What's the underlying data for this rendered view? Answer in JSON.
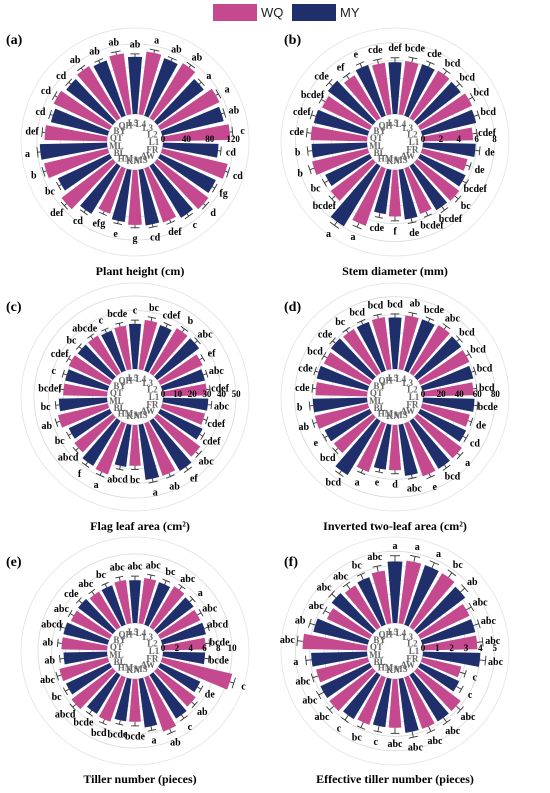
{
  "legend": [
    {
      "name": "WQ",
      "color": "#c5498f"
    },
    {
      "name": "MY",
      "color": "#1f2f6b"
    }
  ],
  "chart_data": [
    {
      "type": "bar",
      "polar": true,
      "panel": "(a)",
      "title": "Plant height (cm)",
      "ticks": [
        "0",
        "40",
        "80",
        "120"
      ],
      "rmax": 130,
      "categories": [
        "L1",
        "L2",
        "L3",
        "L4",
        "L5",
        "QH",
        "BY",
        "QT",
        "ML",
        "BL",
        "HM",
        "KN",
        "MS",
        "AW",
        "FR"
      ],
      "series": [
        {
          "name": "WQ",
          "values": [
            115,
            112,
            110,
            108,
            105,
            104,
            106,
            107,
            112,
            110,
            82,
            94,
            98,
            110,
            115
          ],
          "err": [
            5,
            5,
            5,
            5,
            5,
            5,
            5,
            5,
            5,
            5,
            5,
            5,
            5,
            5,
            5
          ]
        },
        {
          "name": "MY",
          "values": [
            95,
            108,
            100,
            104,
            98,
            100,
            100,
            100,
            115,
            98,
            96,
            90,
            96,
            104,
            105
          ],
          "err": [
            5,
            5,
            5,
            5,
            5,
            5,
            5,
            5,
            5,
            5,
            5,
            5,
            5,
            5,
            5
          ]
        }
      ],
      "letters": [
        [
          "c",
          "cd"
        ],
        [
          "a",
          "ab"
        ],
        [
          "ab",
          "a"
        ],
        [
          "a",
          "ab"
        ],
        [
          "ab",
          "ab"
        ],
        [
          "ab",
          "ab"
        ],
        [
          "cd",
          "cd"
        ],
        [
          "def",
          "cd"
        ],
        [
          "b",
          "a"
        ],
        [
          "def",
          "bc"
        ],
        [
          "efg",
          "cd"
        ],
        [
          "g",
          "e"
        ],
        [
          "def",
          "cd"
        ],
        [
          "d",
          "c"
        ],
        [
          "cd",
          "fg"
        ]
      ]
    },
    {
      "type": "bar",
      "polar": true,
      "panel": "(b)",
      "title": "Stem diameter (mm)",
      "ticks": [
        "0",
        "2",
        "4",
        "6",
        "8"
      ],
      "rmax": 8.5,
      "categories": [
        "L1",
        "L2",
        "L3",
        "L4",
        "L5",
        "QH",
        "BY",
        "QT",
        "ML",
        "BL",
        "HM",
        "KN",
        "MS",
        "AW",
        "FR"
      ],
      "series": [
        {
          "name": "WQ",
          "values": [
            5.6,
            6.4,
            6.2,
            6.0,
            5.8,
            5.6,
            5.9,
            6.3,
            6.4,
            5.9,
            6.8,
            5.2,
            5.4,
            5.9,
            5.2
          ],
          "err": [
            0.5,
            0.5,
            0.5,
            0.5,
            0.5,
            0.5,
            0.5,
            0.5,
            0.5,
            0.5,
            0.5,
            0.5,
            0.5,
            0.5,
            0.5
          ]
        },
        {
          "name": "MY",
          "values": [
            5.9,
            6.2,
            6.1,
            6.1,
            5.8,
            6.0,
            6.3,
            6.2,
            6.2,
            5.5,
            7.9,
            5.0,
            5.6,
            5.8,
            5.6
          ],
          "err": [
            0.5,
            0.5,
            0.5,
            0.5,
            0.5,
            0.5,
            0.5,
            0.5,
            0.5,
            0.5,
            0.5,
            0.5,
            0.5,
            0.5,
            0.5
          ]
        }
      ],
      "letters": [
        [
          "cdef",
          "de"
        ],
        [
          "bcd",
          "bcd"
        ],
        [
          "bcd",
          "bcd"
        ],
        [
          "bcde",
          "cde"
        ],
        [
          "cde",
          "def"
        ],
        [
          "ef",
          "e"
        ],
        [
          "bcdef",
          "cde"
        ],
        [
          "cde",
          "cdef"
        ],
        [
          "b",
          "b"
        ],
        [
          "bcdef",
          "bc"
        ],
        [
          "a",
          "a"
        ],
        [
          "f",
          "cde"
        ],
        [
          "bcdef",
          "de"
        ],
        [
          "bc",
          "bcdef"
        ],
        [
          "de",
          "bcdef"
        ]
      ]
    },
    {
      "type": "bar",
      "polar": true,
      "panel": "(c)",
      "title": "Flag leaf area (cm²)",
      "ticks": [
        "0",
        "10",
        "20",
        "30",
        "40",
        "50"
      ],
      "rmax": 52,
      "categories": [
        "L1",
        "L2",
        "L3",
        "L4",
        "L5",
        "QH",
        "BY",
        "QT",
        "ML",
        "BL",
        "HM",
        "KN",
        "MS",
        "AW",
        "FR"
      ],
      "series": [
        {
          "name": "WQ",
          "values": [
            30,
            32,
            36,
            34,
            30,
            30,
            31,
            30,
            35,
            33,
            37,
            28,
            38,
            37,
            30
          ],
          "err": [
            2.5,
            2.5,
            2.5,
            2.5,
            2.5,
            2.5,
            2.5,
            2.5,
            2.5,
            2.5,
            2.5,
            2.5,
            2.5,
            2.5,
            2.5
          ]
        },
        {
          "name": "MY",
          "values": [
            31,
            30,
            36,
            33,
            31,
            29,
            30,
            30,
            33,
            31,
            36,
            29,
            38,
            40,
            32
          ],
          "err": [
            2.5,
            2.5,
            2.5,
            2.5,
            2.5,
            2.5,
            2.5,
            2.5,
            2.5,
            2.5,
            2.5,
            2.5,
            2.5,
            2.5,
            2.5
          ]
        }
      ],
      "letters": [
        [
          "cdef",
          "abc"
        ],
        [
          "ef",
          "abc"
        ],
        [
          "b",
          "abc"
        ],
        [
          "bc",
          "cdef"
        ],
        [
          "bcde",
          "c"
        ],
        [
          "abcde",
          "c"
        ],
        [
          "cdef",
          "bc"
        ],
        [
          "bcdef",
          "c"
        ],
        [
          "ab",
          "bc"
        ],
        [
          "abcd",
          "bc"
        ],
        [
          "a",
          "f"
        ],
        [
          "bc",
          "abcd"
        ],
        [
          "ab",
          "a"
        ],
        [
          "abc",
          "ef"
        ],
        [
          "cdef",
          "cdef"
        ]
      ]
    },
    {
      "type": "bar",
      "polar": true,
      "panel": "(d)",
      "title": "Inverted two-leaf area (cm²)",
      "ticks": [
        "0",
        "20",
        "40",
        "60",
        "80"
      ],
      "rmax": 84,
      "categories": [
        "L1",
        "L2",
        "L3",
        "L4",
        "L5",
        "QH",
        "BY",
        "QT",
        "ML",
        "BL",
        "HM",
        "KN",
        "MS",
        "AW",
        "FR"
      ],
      "series": [
        {
          "name": "WQ",
          "values": [
            56,
            60,
            62,
            60,
            58,
            57,
            56,
            57,
            60,
            54,
            57,
            50,
            62,
            62,
            54
          ],
          "err": [
            4,
            4,
            4,
            4,
            4,
            4,
            4,
            4,
            4,
            4,
            4,
            4,
            4,
            4,
            4
          ]
        },
        {
          "name": "MY",
          "values": [
            57,
            58,
            61,
            60,
            57,
            57,
            58,
            58,
            60,
            55,
            70,
            50,
            57,
            62,
            56
          ],
          "err": [
            4,
            4,
            4,
            4,
            4,
            4,
            4,
            4,
            4,
            4,
            4,
            4,
            4,
            4,
            4
          ]
        }
      ],
      "letters": [
        [
          "bcd",
          "bcde"
        ],
        [
          "bcd",
          "bcd"
        ],
        [
          "abc",
          "bcd"
        ],
        [
          "ab",
          "bcde"
        ],
        [
          "bcd",
          "bcd"
        ],
        [
          "bc",
          "bcd"
        ],
        [
          "bcd",
          "cde"
        ],
        [
          "cde",
          "cde"
        ],
        [
          "ab",
          "b"
        ],
        [
          "bcd",
          "e"
        ],
        [
          "a",
          "bcd"
        ],
        [
          "d",
          "e"
        ],
        [
          "e",
          "abc"
        ],
        [
          "a",
          "bcd"
        ],
        [
          "de",
          "cd"
        ]
      ]
    },
    {
      "type": "bar",
      "polar": true,
      "panel": "(e)",
      "title": "Tiller number (pieces)",
      "ticks": [
        "0",
        "2",
        "4",
        "6",
        "8",
        "10"
      ],
      "rmax": 11,
      "categories": [
        "L1",
        "L2",
        "L3",
        "L4",
        "L5",
        "QH",
        "BY",
        "QT",
        "ML",
        "BL",
        "HM",
        "KN",
        "MS",
        "AW",
        "FR"
      ],
      "series": [
        {
          "name": "WQ",
          "values": [
            6.2,
            6.4,
            6.9,
            6.6,
            6.3,
            6.0,
            6.2,
            6.6,
            7.2,
            7.5,
            6.8,
            6.2,
            8.3,
            7.0,
            10.4
          ],
          "err": [
            0.6,
            0.6,
            0.6,
            0.6,
            0.6,
            0.6,
            0.6,
            0.6,
            0.6,
            0.6,
            0.6,
            0.6,
            0.6,
            0.6,
            0.6
          ]
        },
        {
          "name": "MY",
          "values": [
            6.1,
            6.5,
            6.6,
            6.5,
            6.2,
            6.0,
            6.3,
            6.6,
            6.3,
            7.0,
            6.6,
            6.2,
            7.1,
            7.4,
            6.4
          ],
          "err": [
            0.6,
            0.6,
            0.6,
            0.6,
            0.6,
            0.6,
            0.6,
            0.6,
            0.6,
            0.6,
            0.6,
            0.6,
            0.6,
            0.6,
            0.6
          ]
        }
      ],
      "letters": [
        [
          "bcde",
          "bcde"
        ],
        [
          "abc",
          "abcd"
        ],
        [
          "abc",
          "a"
        ],
        [
          "abc",
          "bc"
        ],
        [
          "abc",
          "abc"
        ],
        [
          "abc",
          "bc"
        ],
        [
          "abc",
          "cde"
        ],
        [
          "ab",
          "abcd"
        ],
        [
          "abc",
          "ab"
        ],
        [
          "abcd",
          "bc"
        ],
        [
          "bcd",
          "bcde"
        ],
        [
          "bcde",
          "bcde"
        ],
        [
          "ab",
          "a"
        ],
        [
          "ab",
          "c"
        ],
        [
          "c",
          "de"
        ]
      ]
    },
    {
      "type": "bar",
      "polar": true,
      "panel": "(f)",
      "title": "Effective tiller number (pieces)",
      "ticks": [
        "0",
        "1",
        "2",
        "3",
        "4",
        "5"
      ],
      "rmax": 5.3,
      "categories": [
        "L1",
        "L2",
        "L3",
        "L4",
        "L5",
        "QH",
        "BY",
        "QT",
        "ML",
        "BL",
        "HM",
        "KN",
        "MS",
        "AW",
        "FR"
      ],
      "series": [
        {
          "name": "WQ",
          "values": [
            3.8,
            3.8,
            4.4,
            4.4,
            3.7,
            3.4,
            3.3,
            4.5,
            3.7,
            3.8,
            3.5,
            3.4,
            3.8,
            3.8,
            2.8
          ],
          "err": [
            0.4,
            0.4,
            0.4,
            0.4,
            0.4,
            0.4,
            0.4,
            0.4,
            0.4,
            0.4,
            0.4,
            0.4,
            0.4,
            0.4,
            0.4
          ]
        },
        {
          "name": "MY",
          "values": [
            4.0,
            3.8,
            4.2,
            4.4,
            4.3,
            3.5,
            3.6,
            3.9,
            3.9,
            3.8,
            3.6,
            3.4,
            3.8,
            3.8,
            3.0
          ],
          "err": [
            0.4,
            0.4,
            0.4,
            0.4,
            0.4,
            0.4,
            0.4,
            0.4,
            0.4,
            0.4,
            0.4,
            0.4,
            0.4,
            0.4,
            0.4
          ]
        }
      ],
      "letters": [
        [
          "abc",
          "abc"
        ],
        [
          "abc",
          "abc"
        ],
        [
          "bc",
          "ab"
        ],
        [
          "a",
          "a"
        ],
        [
          "abc",
          "a"
        ],
        [
          "abc",
          "bc"
        ],
        [
          "abc",
          "abc"
        ],
        [
          "abc",
          "ab"
        ],
        [
          "abc",
          "a"
        ],
        [
          "abc",
          "abc"
        ],
        [
          "bc",
          "c"
        ],
        [
          "abc",
          "c"
        ],
        [
          "abc",
          "abc"
        ],
        [
          "abc",
          "abc"
        ],
        [
          "c",
          "c"
        ]
      ]
    }
  ]
}
